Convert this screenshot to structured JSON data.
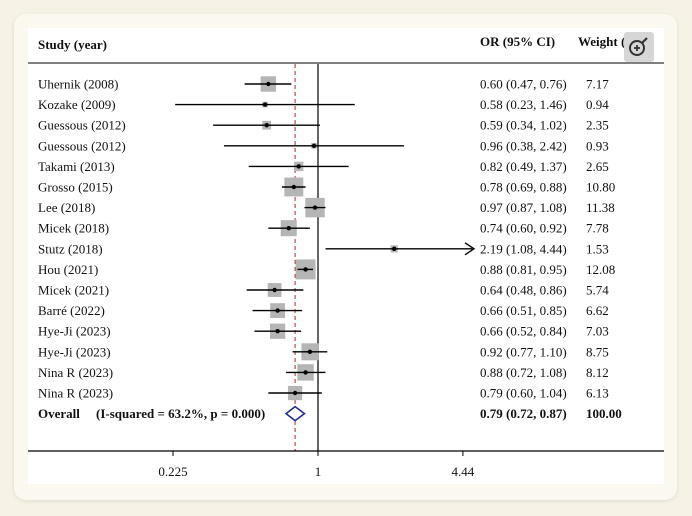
{
  "chart_data": {
    "type": "forest",
    "headers": {
      "study": "Study (year)",
      "or": "OR (95% CI)",
      "weight": "Weight (%)"
    },
    "x_scale": "log",
    "x_ticks": [
      {
        "value": 0.225,
        "label": "0.225"
      },
      {
        "value": 1,
        "label": "1"
      },
      {
        "value": 4.44,
        "label": "4.44"
      }
    ],
    "null_line": 1,
    "pooled_line": 0.79,
    "studies": [
      {
        "label": "Uhernik (2008)",
        "or": 0.6,
        "lo": 0.47,
        "hi": 0.76,
        "ci_text": "0.60 (0.47, 0.76)",
        "weight": 7.17,
        "weight_text": "7.17"
      },
      {
        "label": "Kozake (2009)",
        "or": 0.58,
        "lo": 0.23,
        "hi": 1.46,
        "ci_text": "0.58 (0.23, 1.46)",
        "weight": 0.94,
        "weight_text": "0.94"
      },
      {
        "label": "Guessous (2012)",
        "or": 0.59,
        "lo": 0.34,
        "hi": 1.02,
        "ci_text": "0.59 (0.34, 1.02)",
        "weight": 2.35,
        "weight_text": "2.35"
      },
      {
        "label": "Guessous (2012)",
        "or": 0.96,
        "lo": 0.38,
        "hi": 2.42,
        "ci_text": "0.96 (0.38, 2.42)",
        "weight": 0.93,
        "weight_text": "0.93"
      },
      {
        "label": "Takami (2013)",
        "or": 0.82,
        "lo": 0.49,
        "hi": 1.37,
        "ci_text": "0.82 (0.49, 1.37)",
        "weight": 2.65,
        "weight_text": "2.65"
      },
      {
        "label": "Grosso (2015)",
        "or": 0.78,
        "lo": 0.69,
        "hi": 0.88,
        "ci_text": "0.78 (0.69, 0.88)",
        "weight": 10.8,
        "weight_text": "10.80"
      },
      {
        "label": "Lee (2018)",
        "or": 0.97,
        "lo": 0.87,
        "hi": 1.08,
        "ci_text": "0.97 (0.87, 1.08)",
        "weight": 11.38,
        "weight_text": "11.38"
      },
      {
        "label": "Micek (2018)",
        "or": 0.74,
        "lo": 0.6,
        "hi": 0.92,
        "ci_text": "0.74 (0.60, 0.92)",
        "weight": 7.78,
        "weight_text": "7.78"
      },
      {
        "label": "Stutz (2018)",
        "or": 2.19,
        "lo": 1.08,
        "hi": 4.44,
        "ci_text": "2.19 (1.08, 4.44)",
        "weight": 1.53,
        "weight_text": "1.53",
        "arrow": true
      },
      {
        "label": "Hou (2021)",
        "or": 0.88,
        "lo": 0.81,
        "hi": 0.95,
        "ci_text": "0.88 (0.81, 0.95)",
        "weight": 12.08,
        "weight_text": "12.08"
      },
      {
        "label": "Micek (2021)",
        "or": 0.64,
        "lo": 0.48,
        "hi": 0.86,
        "ci_text": "0.64 (0.48, 0.86)",
        "weight": 5.74,
        "weight_text": "5.74"
      },
      {
        "label": "Barré (2022)",
        "or": 0.66,
        "lo": 0.51,
        "hi": 0.85,
        "ci_text": "0.66 (0.51, 0.85)",
        "weight": 6.62,
        "weight_text": "6.62"
      },
      {
        "label": "Hye-Ji (2023)",
        "or": 0.66,
        "lo": 0.52,
        "hi": 0.84,
        "ci_text": "0.66 (0.52, 0.84)",
        "weight": 7.03,
        "weight_text": "7.03"
      },
      {
        "label": "Hye-Ji (2023)",
        "or": 0.92,
        "lo": 0.77,
        "hi": 1.1,
        "ci_text": "0.92 (0.77, 1.10)",
        "weight": 8.75,
        "weight_text": "8.75"
      },
      {
        "label": "Nina R (2023)",
        "or": 0.88,
        "lo": 0.72,
        "hi": 1.08,
        "ci_text": "0.88 (0.72, 1.08)",
        "weight": 8.12,
        "weight_text": "8.12"
      },
      {
        "label": "Nina R (2023)",
        "or": 0.79,
        "lo": 0.6,
        "hi": 1.04,
        "ci_text": "0.79 (0.60, 1.04)",
        "weight": 6.13,
        "weight_text": "6.13"
      }
    ],
    "overall": {
      "label": "Overall",
      "heterogeneity": "(I-squared = 63.2%, p = 0.000)",
      "or": 0.79,
      "lo": 0.72,
      "hi": 0.87,
      "ci_text": "0.79 (0.72, 0.87)",
      "weight_text": "100.00"
    },
    "colors": {
      "box": "#b5b5b5",
      "diamond": "#1f2f8a",
      "pooled_line": "#b0282c",
      "line": "#000000"
    }
  },
  "toolbar": {
    "zoom_icon": "zoom-in-icon"
  }
}
